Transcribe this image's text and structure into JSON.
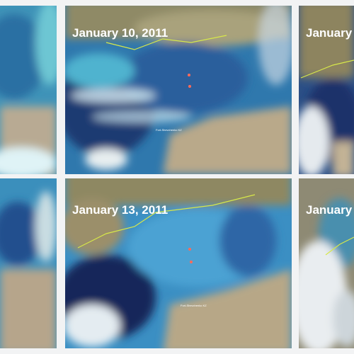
{
  "top_row": {
    "middle": {
      "date": "January 10, 2011",
      "place": "Fort-Shevchenko KZ"
    },
    "right": {
      "date": "January"
    }
  },
  "bottom_row": {
    "middle": {
      "date": "January 13, 2011",
      "place": "Fort-Shevchenko KZ"
    },
    "right": {
      "date": "January"
    }
  }
}
